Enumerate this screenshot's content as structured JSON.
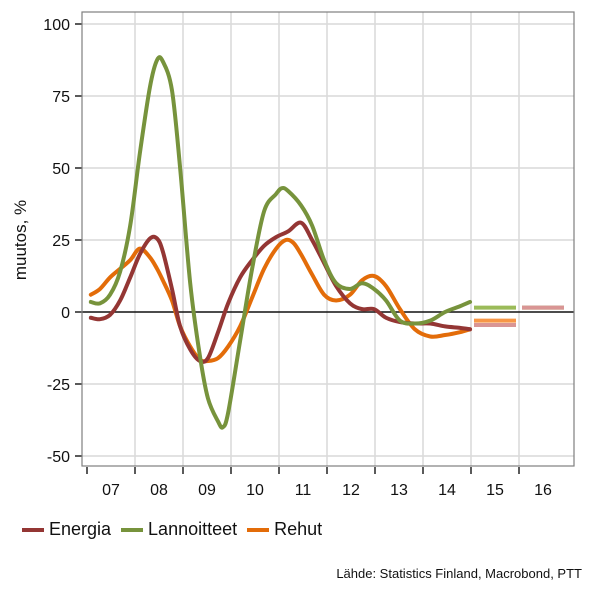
{
  "chart_data": {
    "type": "line",
    "title": "",
    "xlabel": "",
    "ylabel": "muutos, %",
    "ylim": [
      -50,
      100
    ],
    "yticks": [
      100,
      75,
      50,
      25,
      0,
      -25,
      -50
    ],
    "ytick_labels": [
      "100",
      "75",
      "50",
      "25",
      "0",
      "-25",
      "-50"
    ],
    "xlim": [
      2006.9,
      2017.1
    ],
    "xtick_labels": [
      "07",
      "08",
      "09",
      "10",
      "11",
      "12",
      "13",
      "14",
      "15",
      "16"
    ],
    "grid": true,
    "legend_position": "bottom-left",
    "series": [
      {
        "name": "Energia",
        "color": "#943634",
        "points": [
          [
            2007.08,
            -2
          ],
          [
            2007.27,
            -2.5
          ],
          [
            2007.48,
            -1
          ],
          [
            2007.69,
            4
          ],
          [
            2007.9,
            12
          ],
          [
            2008.1,
            20
          ],
          [
            2008.31,
            25.5
          ],
          [
            2008.46,
            25.5
          ],
          [
            2008.58,
            21
          ],
          [
            2008.77,
            8
          ],
          [
            2008.94,
            -5
          ],
          [
            2009.15,
            -13
          ],
          [
            2009.35,
            -17
          ],
          [
            2009.52,
            -16
          ],
          [
            2009.73,
            -7
          ],
          [
            2009.94,
            3
          ],
          [
            2010.19,
            12
          ],
          [
            2010.44,
            18
          ],
          [
            2010.69,
            23
          ],
          [
            2010.94,
            26
          ],
          [
            2011.19,
            28
          ],
          [
            2011.46,
            31
          ],
          [
            2011.69,
            25
          ],
          [
            2011.94,
            17
          ],
          [
            2012.19,
            9
          ],
          [
            2012.48,
            3
          ],
          [
            2012.73,
            1
          ],
          [
            2012.98,
            1
          ],
          [
            2013.23,
            -2
          ],
          [
            2013.52,
            -3.5
          ],
          [
            2013.83,
            -4
          ],
          [
            2014.15,
            -4
          ],
          [
            2014.46,
            -5
          ],
          [
            2014.77,
            -5.5
          ],
          [
            2014.98,
            -6
          ]
        ]
      },
      {
        "name": "Lannoitteet",
        "color": "#77933c",
        "points": [
          [
            2007.08,
            3.5
          ],
          [
            2007.27,
            3
          ],
          [
            2007.48,
            6
          ],
          [
            2007.69,
            14
          ],
          [
            2007.9,
            30
          ],
          [
            2008.1,
            55
          ],
          [
            2008.31,
            78
          ],
          [
            2008.46,
            87.5
          ],
          [
            2008.58,
            87
          ],
          [
            2008.77,
            77
          ],
          [
            2008.94,
            50
          ],
          [
            2009.15,
            10
          ],
          [
            2009.35,
            -15
          ],
          [
            2009.52,
            -30
          ],
          [
            2009.73,
            -38
          ],
          [
            2009.83,
            -40
          ],
          [
            2009.94,
            -35
          ],
          [
            2010.19,
            -10
          ],
          [
            2010.44,
            15
          ],
          [
            2010.69,
            35
          ],
          [
            2010.94,
            41
          ],
          [
            2011.06,
            43
          ],
          [
            2011.19,
            42
          ],
          [
            2011.46,
            37
          ],
          [
            2011.69,
            30
          ],
          [
            2011.94,
            18
          ],
          [
            2012.19,
            10
          ],
          [
            2012.48,
            8
          ],
          [
            2012.73,
            10
          ],
          [
            2012.98,
            8
          ],
          [
            2013.23,
            4
          ],
          [
            2013.52,
            -3
          ],
          [
            2013.83,
            -4
          ],
          [
            2014.15,
            -3
          ],
          [
            2014.46,
            0
          ],
          [
            2014.77,
            2
          ],
          [
            2014.98,
            3.5
          ]
        ]
      },
      {
        "name": "Rehut",
        "color": "#e36c09",
        "points": [
          [
            2007.08,
            6
          ],
          [
            2007.27,
            8
          ],
          [
            2007.48,
            12
          ],
          [
            2007.69,
            15
          ],
          [
            2007.9,
            18
          ],
          [
            2008.1,
            22
          ],
          [
            2008.31,
            19
          ],
          [
            2008.46,
            15
          ],
          [
            2008.58,
            11
          ],
          [
            2008.77,
            4
          ],
          [
            2008.94,
            -5
          ],
          [
            2009.15,
            -12
          ],
          [
            2009.35,
            -16.5
          ],
          [
            2009.52,
            -17
          ],
          [
            2009.73,
            -16
          ],
          [
            2009.94,
            -12
          ],
          [
            2010.19,
            -5
          ],
          [
            2010.44,
            5
          ],
          [
            2010.69,
            15
          ],
          [
            2010.94,
            22
          ],
          [
            2011.14,
            25
          ],
          [
            2011.3,
            24
          ],
          [
            2011.46,
            20
          ],
          [
            2011.69,
            13
          ],
          [
            2011.94,
            6
          ],
          [
            2012.19,
            4
          ],
          [
            2012.48,
            6
          ],
          [
            2012.73,
            11
          ],
          [
            2012.98,
            12.5
          ],
          [
            2013.23,
            9
          ],
          [
            2013.52,
            1
          ],
          [
            2013.83,
            -6
          ],
          [
            2014.15,
            -8.5
          ],
          [
            2014.46,
            -8
          ],
          [
            2014.77,
            -7
          ],
          [
            2014.98,
            -6
          ]
        ]
      }
    ],
    "forecasts": [
      {
        "series": "Lannoitteet",
        "year": "15",
        "value": 1.5,
        "color": "#9bbb59"
      },
      {
        "series": "Rehut",
        "year": "15",
        "value": -3,
        "color": "#f79646"
      },
      {
        "series": "Energia",
        "year": "15",
        "value": -4.5,
        "color": "#d99594"
      },
      {
        "series": "Lannoitteet",
        "year": "16",
        "value": 1.5,
        "color": "#9bbb59"
      },
      {
        "series": "Energia",
        "year": "16",
        "value": 1.5,
        "color": "#d99594"
      }
    ]
  },
  "legend": [
    {
      "label": "Energia",
      "color": "#943634"
    },
    {
      "label": "Lannoitteet",
      "color": "#77933c"
    },
    {
      "label": "Rehut",
      "color": "#e36c09"
    }
  ],
  "source": "Lähde: Statistics Finland, Macrobond, PTT"
}
